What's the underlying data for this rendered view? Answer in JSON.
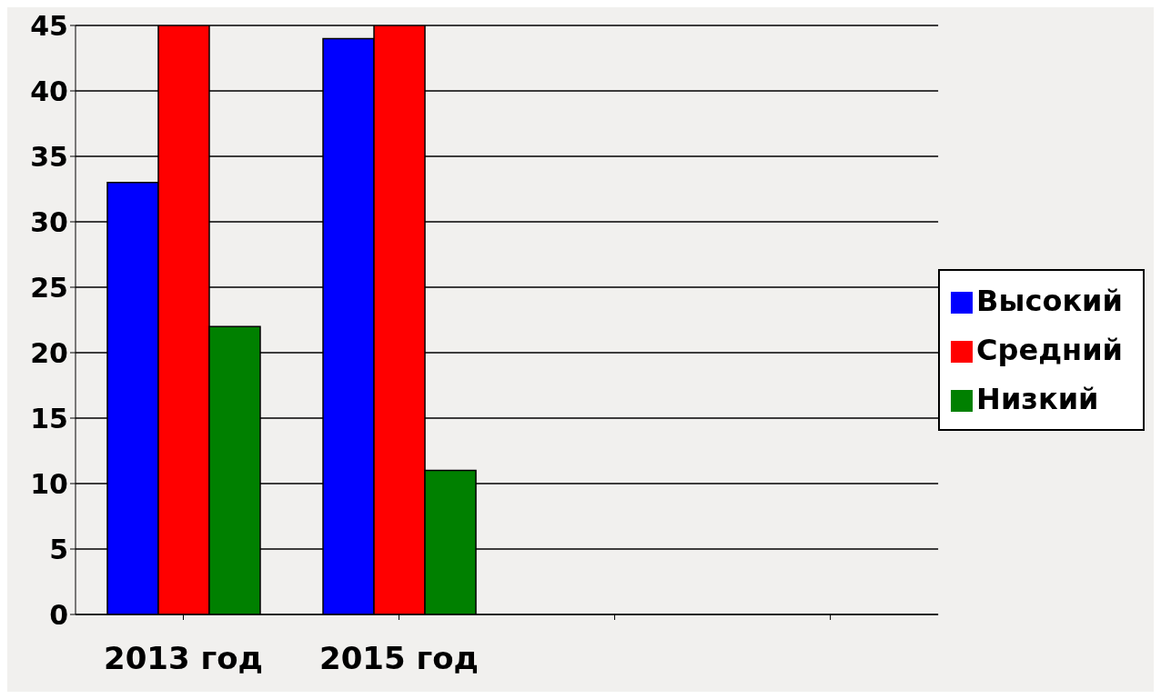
{
  "chart_data": {
    "type": "bar",
    "categories": [
      "2013 год",
      "2015 год",
      null,
      null
    ],
    "series": [
      {
        "name": "Высокий",
        "color": "#0000ff",
        "values": [
          33,
          44,
          null,
          null
        ]
      },
      {
        "name": "Средний",
        "color": "#ff0000",
        "values": [
          45,
          45,
          null,
          null
        ]
      },
      {
        "name": "Низкий",
        "color": "#008000",
        "values": [
          22,
          11,
          null,
          null
        ]
      }
    ],
    "ylim": [
      0,
      45
    ],
    "yticks": [
      0,
      5,
      10,
      15,
      20,
      25,
      30,
      35,
      40,
      45
    ],
    "grid": "y",
    "legend": "right"
  }
}
